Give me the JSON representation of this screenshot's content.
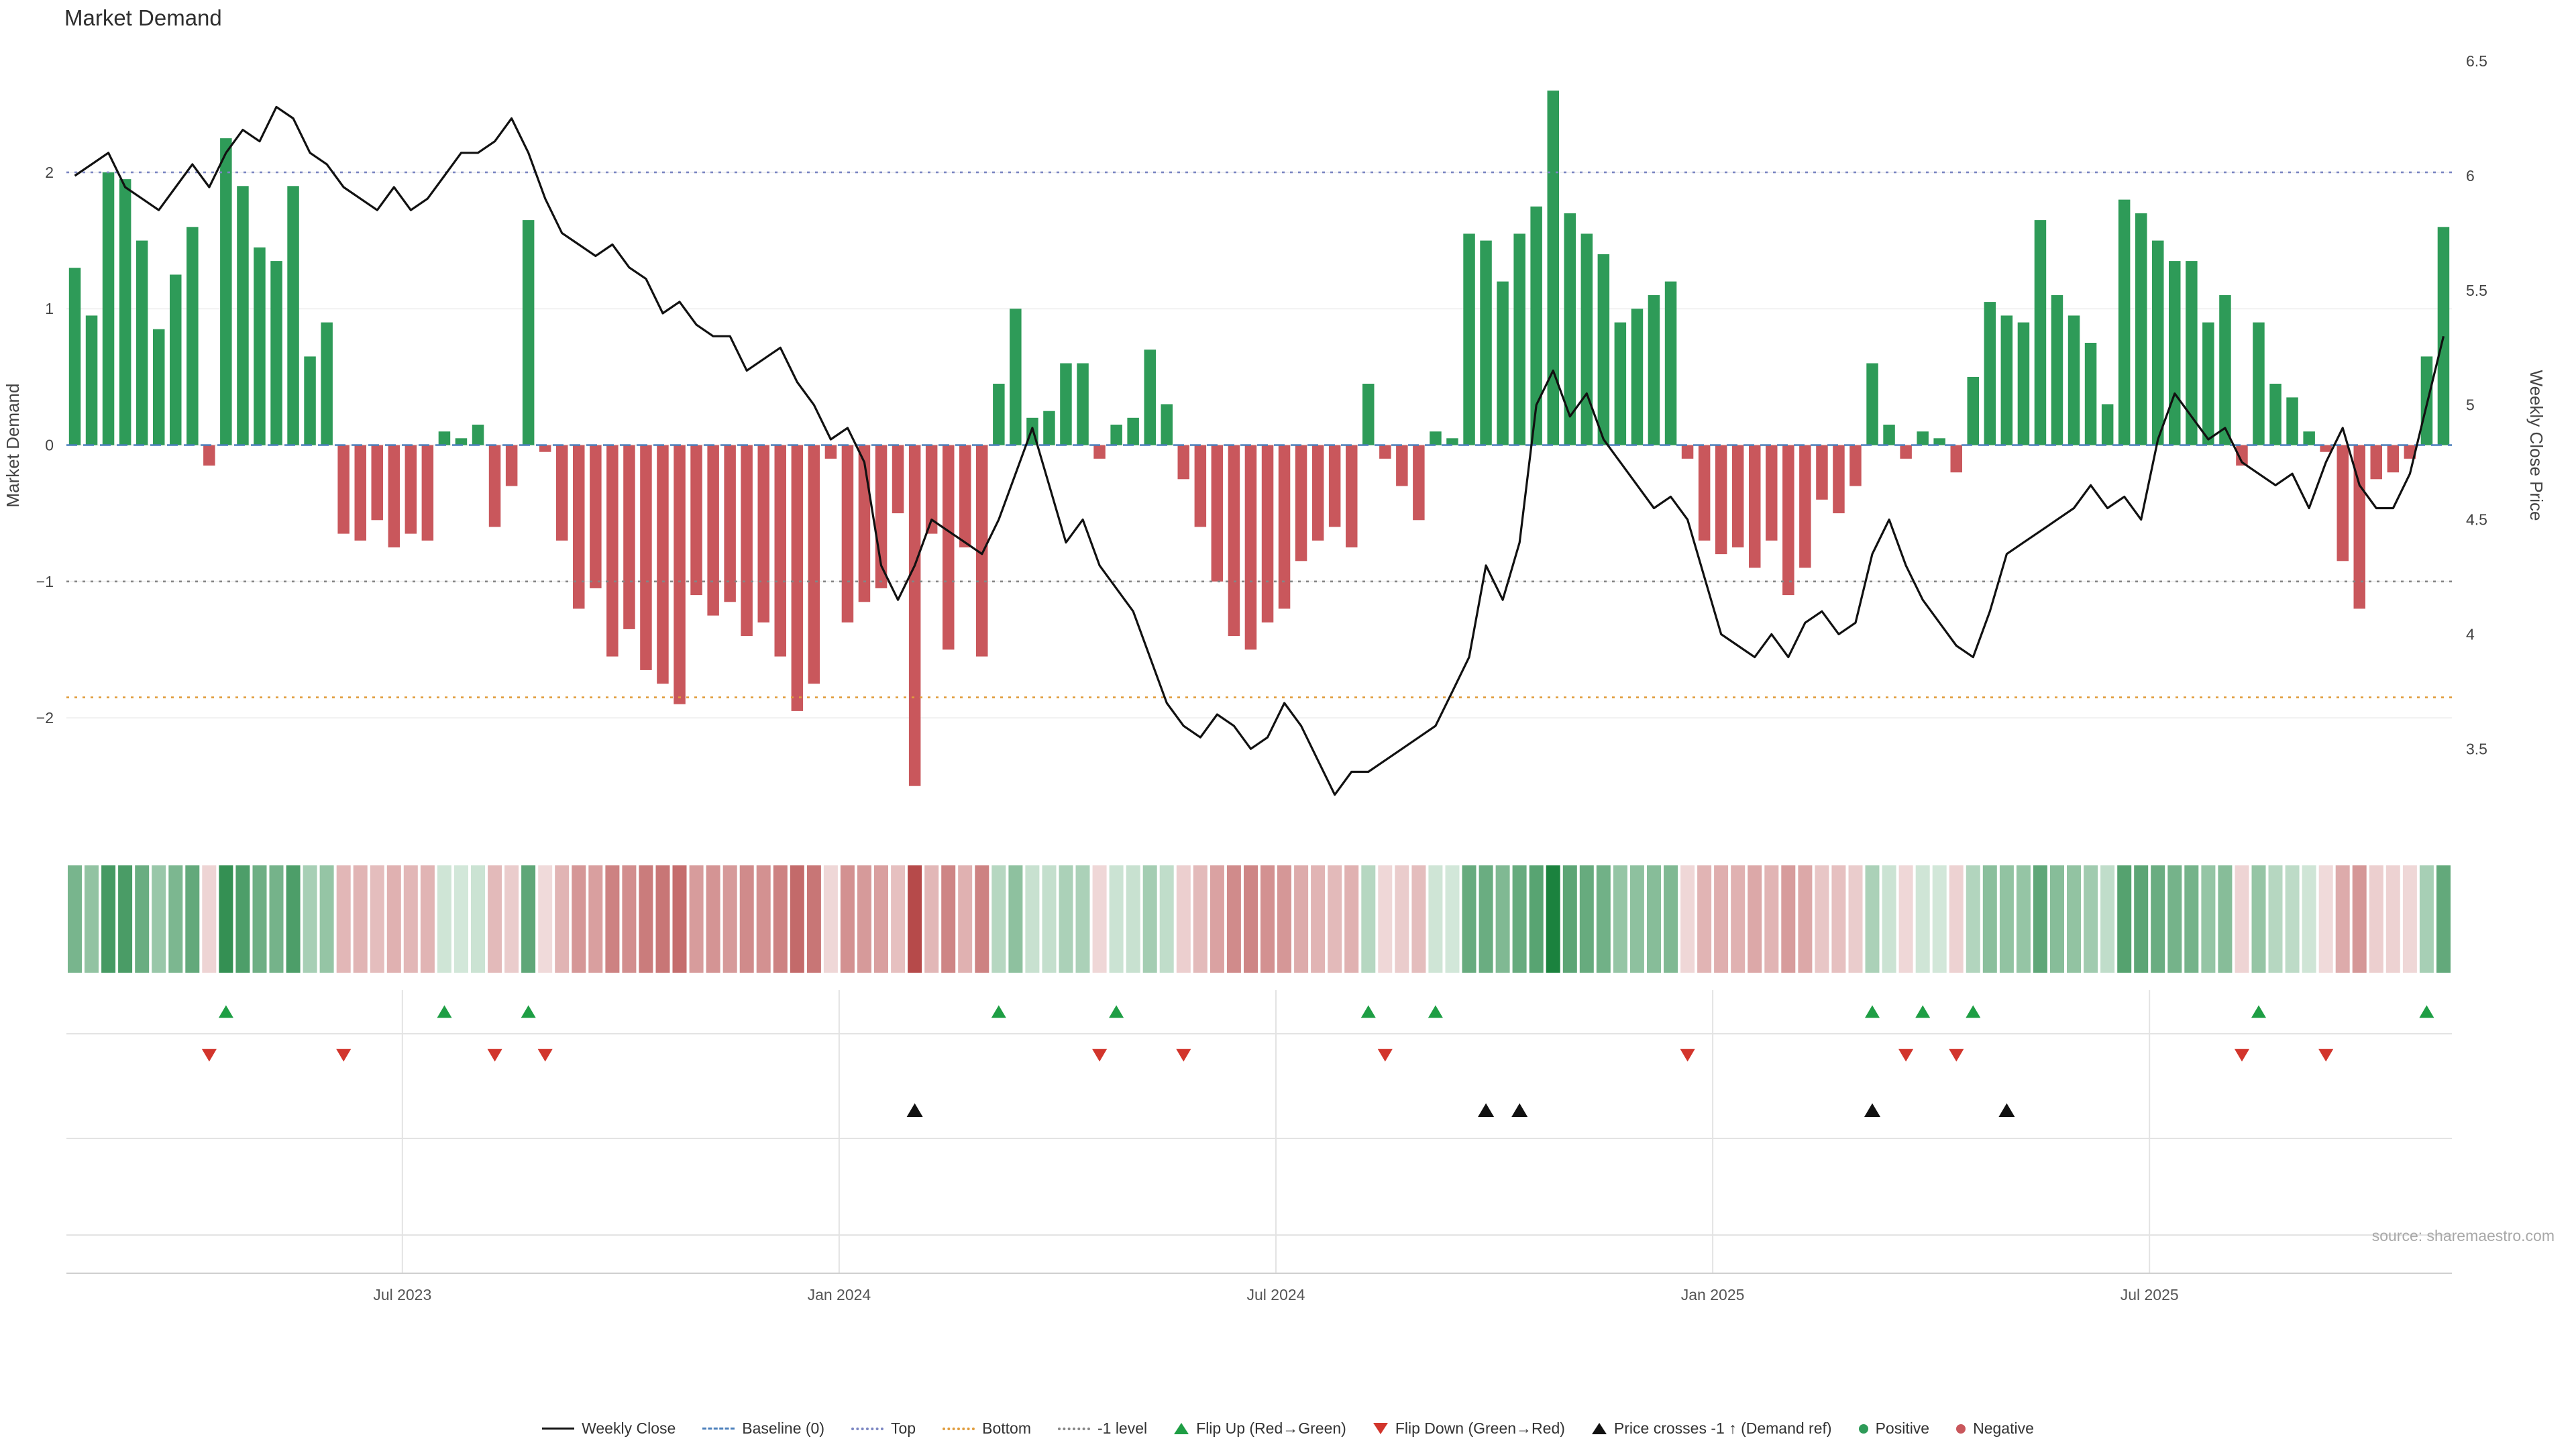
{
  "title": "Market Demand",
  "source_text": "source: sharemaestro.com",
  "colors": {
    "positive": "#2e9b58",
    "negative": "#c9575c",
    "price_line": "#111111",
    "baseline": "#4a7ebb",
    "top_line": "#7b86c2",
    "bottom_line": "#e09c3c",
    "minus1_line": "#858585",
    "flip_up": "#1e9e44",
    "flip_down": "#d2352c",
    "price_cross": "#111111",
    "grid": "#e3e3e3"
  },
  "chart_data": {
    "type": "bar+line+heatmap",
    "x_unit": "week",
    "x_tick_labels": [
      "Jul 2023",
      "Jan 2024",
      "Jul 2024",
      "Jan 2025",
      "Jul 2025"
    ],
    "x_tick_indices": [
      19.5,
      45.5,
      71.5,
      97.5,
      123.5
    ],
    "left_axis": {
      "label": "Market Demand",
      "ticks": [
        -2,
        -1,
        0,
        1,
        2
      ],
      "ylim": [
        -2.9,
        2.9
      ]
    },
    "right_axis": {
      "label": "Weekly Close Price",
      "ticks": [
        3.5,
        4,
        4.5,
        5,
        5.5,
        6,
        6.5
      ],
      "ylim": [
        3.1,
        6.55
      ]
    },
    "reference_lines": [
      {
        "name": "baseline",
        "value": 0,
        "color": "#4a7ebb",
        "style": "dashed"
      },
      {
        "name": "top",
        "value": 2,
        "color": "#7b86c2",
        "style": "dotted"
      },
      {
        "name": "bottom",
        "value": -1.85,
        "color": "#e09c3c",
        "style": "dotted"
      },
      {
        "name": "minus1",
        "value": -1,
        "color": "#858585",
        "style": "dotted"
      }
    ],
    "series": [
      {
        "name": "Market Demand",
        "type": "bar",
        "axis": "left",
        "values": [
          1.3,
          0.95,
          2.0,
          1.95,
          1.5,
          0.85,
          1.25,
          1.6,
          -0.15,
          2.25,
          1.9,
          1.45,
          1.35,
          1.9,
          0.65,
          0.9,
          -0.65,
          -0.7,
          -0.55,
          -0.75,
          -0.65,
          -0.7,
          0.1,
          0.05,
          0.15,
          -0.6,
          -0.3,
          1.65,
          -0.05,
          -0.7,
          -1.2,
          -1.05,
          -1.55,
          -1.35,
          -1.65,
          -1.75,
          -1.9,
          -1.1,
          -1.25,
          -1.15,
          -1.4,
          -1.3,
          -1.55,
          -1.95,
          -1.75,
          -0.1,
          -1.3,
          -1.15,
          -1.05,
          -0.5,
          -2.5,
          -0.65,
          -1.5,
          -0.75,
          -1.55,
          0.45,
          1.0,
          0.2,
          0.25,
          0.6,
          0.6,
          -0.1,
          0.15,
          0.2,
          0.7,
          0.3,
          -0.25,
          -0.6,
          -1.0,
          -1.4,
          -1.5,
          -1.3,
          -1.2,
          -0.85,
          -0.7,
          -0.6,
          -0.75,
          0.45,
          -0.1,
          -0.3,
          -0.55,
          0.1,
          0.05,
          1.55,
          1.5,
          1.2,
          1.55,
          1.75,
          2.6,
          1.7,
          1.55,
          1.4,
          0.9,
          1.0,
          1.1,
          1.2,
          -0.1,
          -0.7,
          -0.8,
          -0.75,
          -0.9,
          -0.7,
          -1.1,
          -0.9,
          -0.4,
          -0.5,
          -0.3,
          0.6,
          0.15,
          -0.1,
          0.1,
          0.05,
          -0.2,
          0.5,
          1.05,
          0.95,
          0.9,
          1.65,
          1.1,
          0.95,
          0.75,
          0.3,
          1.8,
          1.7,
          1.5,
          1.35,
          1.35,
          0.9,
          1.1,
          -0.15,
          0.9,
          0.45,
          0.35,
          0.1,
          -0.05,
          -0.85,
          -1.2,
          -0.25,
          -0.2,
          -0.1,
          0.65,
          1.6
        ]
      },
      {
        "name": "Weekly Close",
        "type": "line",
        "axis": "right",
        "values": [
          6.0,
          6.05,
          6.1,
          5.95,
          5.9,
          5.85,
          5.95,
          6.05,
          5.95,
          6.1,
          6.2,
          6.15,
          6.3,
          6.25,
          6.1,
          6.05,
          5.95,
          5.9,
          5.85,
          5.95,
          5.85,
          5.9,
          6.0,
          6.1,
          6.1,
          6.15,
          6.25,
          6.1,
          5.9,
          5.75,
          5.7,
          5.65,
          5.7,
          5.6,
          5.55,
          5.4,
          5.45,
          5.35,
          5.3,
          5.3,
          5.15,
          5.2,
          5.25,
          5.1,
          5.0,
          4.85,
          4.9,
          4.75,
          4.3,
          4.15,
          4.3,
          4.5,
          4.45,
          4.4,
          4.35,
          4.5,
          4.7,
          4.9,
          4.65,
          4.4,
          4.5,
          4.3,
          4.2,
          4.1,
          3.9,
          3.7,
          3.6,
          3.55,
          3.65,
          3.6,
          3.5,
          3.55,
          3.7,
          3.6,
          3.45,
          3.3,
          3.4,
          3.4,
          3.45,
          3.5,
          3.55,
          3.6,
          3.75,
          3.9,
          4.3,
          4.15,
          4.4,
          5.0,
          5.15,
          4.95,
          5.05,
          4.85,
          4.75,
          4.65,
          4.55,
          4.6,
          4.5,
          4.25,
          4.0,
          3.95,
          3.9,
          4.0,
          3.9,
          4.05,
          4.1,
          4.0,
          4.05,
          4.35,
          4.5,
          4.3,
          4.15,
          4.05,
          3.95,
          3.9,
          4.1,
          4.35,
          4.4,
          4.45,
          4.5,
          4.55,
          4.65,
          4.55,
          4.6,
          4.5,
          4.85,
          5.05,
          4.95,
          4.85,
          4.9,
          4.75,
          4.7,
          4.65,
          4.7,
          4.55,
          4.75,
          4.9,
          4.65,
          4.55,
          4.55,
          4.7,
          5.0,
          5.3
        ]
      }
    ],
    "markers": {
      "flip_up_indices": [
        9,
        22,
        27,
        55,
        62,
        77,
        81,
        107,
        110,
        113,
        130,
        140
      ],
      "flip_down_indices": [
        8,
        16,
        25,
        28,
        61,
        66,
        78,
        96,
        109,
        112,
        129,
        134
      ],
      "price_cross_indices": [
        50,
        84,
        86,
        107,
        115
      ]
    },
    "heatmap": {
      "source": "demand",
      "max_abs": 2.6
    }
  },
  "legend": {
    "items": [
      {
        "label": "Weekly Close",
        "swatch": "line-solid",
        "color": "#111111"
      },
      {
        "label": "Baseline (0)",
        "swatch": "line-dashed",
        "color": "#4a7ebb"
      },
      {
        "label": "Top",
        "swatch": "line-dotted",
        "color": "#7b86c2"
      },
      {
        "label": "Bottom",
        "swatch": "line-dotted",
        "color": "#e09c3c"
      },
      {
        "label": "-1 level",
        "swatch": "line-dotted",
        "color": "#858585"
      },
      {
        "label": "Flip Up (Red→Green)",
        "swatch": "triangle-up",
        "color": "#1e9e44"
      },
      {
        "label": "Flip Down (Green→Red)",
        "swatch": "triangle-down",
        "color": "#d2352c"
      },
      {
        "label": "Price crosses -1 ↑ (Demand ref)",
        "swatch": "triangle-up",
        "color": "#111111"
      },
      {
        "label": "Positive",
        "swatch": "dot",
        "color": "#2e9b58"
      },
      {
        "label": "Negative",
        "swatch": "dot",
        "color": "#c9575c"
      }
    ]
  }
}
